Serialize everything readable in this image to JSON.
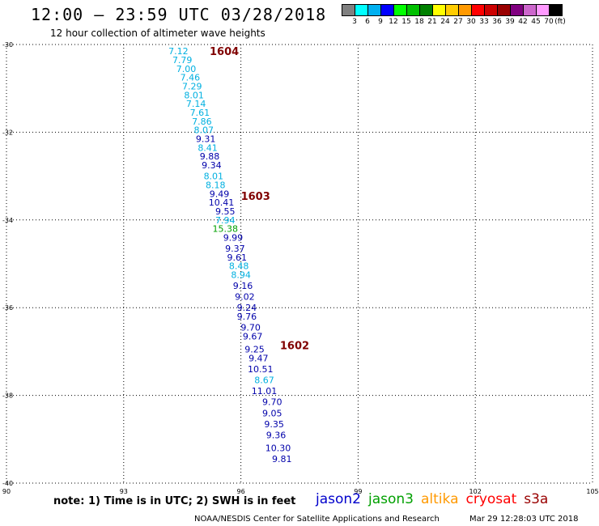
{
  "header": {
    "title": "12:00 – 23:59 UTC 03/28/2018",
    "subtitle": "12 hour collection of altimeter wave heights"
  },
  "colorbar": {
    "colors": [
      "#808080",
      "#00ffff",
      "#00b0f0",
      "#0000ff",
      "#00ff00",
      "#00c000",
      "#008000",
      "#ffff00",
      "#ffcc00",
      "#ff9900",
      "#ff0000",
      "#cc0000",
      "#990000",
      "#800080",
      "#cc66cc",
      "#ff99ff",
      "#000000"
    ],
    "labels": [
      "3",
      "6",
      "9",
      "12",
      "15",
      "18",
      "21",
      "24",
      "27",
      "30",
      "33",
      "36",
      "39",
      "42",
      "45",
      "70"
    ],
    "unit": "(ft)"
  },
  "footer": {
    "note": "note: 1) Time is in UTC; 2) SWH is in feet",
    "credit": "NOAA/NESDIS Center for Satellite Applications and Research",
    "timestamp": "Mar 29 12:28:03 UTC 2018",
    "satellites": [
      {
        "name": "jason2",
        "color": "#0000cc"
      },
      {
        "name": "jason3",
        "color": "#00a000"
      },
      {
        "name": "altika",
        "color": "#ff9900"
      },
      {
        "name": "cryosat",
        "color": "#ff0000"
      },
      {
        "name": "s3a",
        "color": "#990000"
      }
    ]
  },
  "chart_data": {
    "type": "scatter",
    "xlim": [
      90,
      105
    ],
    "ylim": [
      -40,
      -30
    ],
    "x_ticks": [
      "90",
      "93",
      "96",
      "99",
      "102",
      "105"
    ],
    "y_ticks": [
      "-30",
      "-32",
      "-34",
      "-36",
      "-38",
      "-40"
    ],
    "grid": true,
    "colors": {
      "cyan": "#00b0e0",
      "blue": "#0000aa",
      "green": "#00a000",
      "label": "#800000"
    },
    "points": [
      {
        "x": 94.4,
        "y": -30.15,
        "v": "7.12",
        "c": "cyan"
      },
      {
        "x": 94.5,
        "y": -30.35,
        "v": "7.79",
        "c": "cyan"
      },
      {
        "x": 94.6,
        "y": -30.55,
        "v": "7.00",
        "c": "cyan"
      },
      {
        "x": 94.7,
        "y": -30.75,
        "v": "7.46",
        "c": "cyan"
      },
      {
        "x": 94.75,
        "y": -30.95,
        "v": "7.29",
        "c": "cyan"
      },
      {
        "x": 94.8,
        "y": -31.15,
        "v": "8.01",
        "c": "cyan"
      },
      {
        "x": 94.85,
        "y": -31.35,
        "v": "7.14",
        "c": "cyan"
      },
      {
        "x": 94.95,
        "y": -31.55,
        "v": "7.61",
        "c": "cyan"
      },
      {
        "x": 95.0,
        "y": -31.75,
        "v": "7.86",
        "c": "cyan"
      },
      {
        "x": 95.05,
        "y": -31.95,
        "v": "8.07",
        "c": "cyan"
      },
      {
        "x": 95.1,
        "y": -32.15,
        "v": "9.31",
        "c": "blue"
      },
      {
        "x": 95.15,
        "y": -32.35,
        "v": "8.41",
        "c": "cyan"
      },
      {
        "x": 95.2,
        "y": -32.55,
        "v": "9.88",
        "c": "blue"
      },
      {
        "x": 95.25,
        "y": -32.75,
        "v": "9.34",
        "c": "blue"
      },
      {
        "x": 95.3,
        "y": -33.0,
        "v": "8.01",
        "c": "cyan"
      },
      {
        "x": 95.35,
        "y": -33.2,
        "v": "8.18",
        "c": "cyan"
      },
      {
        "x": 95.45,
        "y": -33.4,
        "v": "9.49",
        "c": "blue"
      },
      {
        "x": 95.5,
        "y": -33.6,
        "v": "10.41",
        "c": "blue"
      },
      {
        "x": 95.6,
        "y": -33.8,
        "v": "9.55",
        "c": "blue"
      },
      {
        "x": 95.6,
        "y": -34.0,
        "v": "7.94",
        "c": "cyan"
      },
      {
        "x": 95.6,
        "y": -34.2,
        "v": "15.38",
        "c": "green"
      },
      {
        "x": 95.8,
        "y": -34.4,
        "v": "9.99",
        "c": "blue"
      },
      {
        "x": 95.85,
        "y": -34.65,
        "v": "9.37",
        "c": "blue"
      },
      {
        "x": 95.9,
        "y": -34.85,
        "v": "9.61",
        "c": "blue"
      },
      {
        "x": 95.95,
        "y": -35.05,
        "v": "8.48",
        "c": "cyan"
      },
      {
        "x": 96.0,
        "y": -35.25,
        "v": "8.94",
        "c": "cyan"
      },
      {
        "x": 96.05,
        "y": -35.5,
        "v": "9.16",
        "c": "blue"
      },
      {
        "x": 96.1,
        "y": -35.75,
        "v": "9.02",
        "c": "blue"
      },
      {
        "x": 96.15,
        "y": -36.0,
        "v": "9.24",
        "c": "blue"
      },
      {
        "x": 96.15,
        "y": -36.2,
        "v": "9.76",
        "c": "blue"
      },
      {
        "x": 96.25,
        "y": -36.45,
        "v": "9.70",
        "c": "blue"
      },
      {
        "x": 96.3,
        "y": -36.65,
        "v": "9.67",
        "c": "blue"
      },
      {
        "x": 96.35,
        "y": -36.95,
        "v": "9.25",
        "c": "blue"
      },
      {
        "x": 96.45,
        "y": -37.15,
        "v": "9.47",
        "c": "blue"
      },
      {
        "x": 96.5,
        "y": -37.4,
        "v": "10.51",
        "c": "blue"
      },
      {
        "x": 96.6,
        "y": -37.65,
        "v": "8.67",
        "c": "cyan"
      },
      {
        "x": 96.6,
        "y": -37.9,
        "v": "11.01",
        "c": "blue"
      },
      {
        "x": 96.8,
        "y": -38.15,
        "v": "9.70",
        "c": "blue"
      },
      {
        "x": 96.8,
        "y": -38.4,
        "v": "9.05",
        "c": "blue"
      },
      {
        "x": 96.85,
        "y": -38.65,
        "v": "9.35",
        "c": "blue"
      },
      {
        "x": 96.9,
        "y": -38.9,
        "v": "9.36",
        "c": "blue"
      },
      {
        "x": 96.95,
        "y": -39.2,
        "v": "10.30",
        "c": "blue"
      },
      {
        "x": 97.05,
        "y": -39.45,
        "v": "9.81",
        "c": "blue"
      }
    ],
    "pass_labels": [
      {
        "x": 95.2,
        "y": -30.15,
        "text": "1604"
      },
      {
        "x": 96.0,
        "y": -33.45,
        "text": "1603"
      },
      {
        "x": 97.0,
        "y": -36.85,
        "text": "1602"
      }
    ]
  }
}
